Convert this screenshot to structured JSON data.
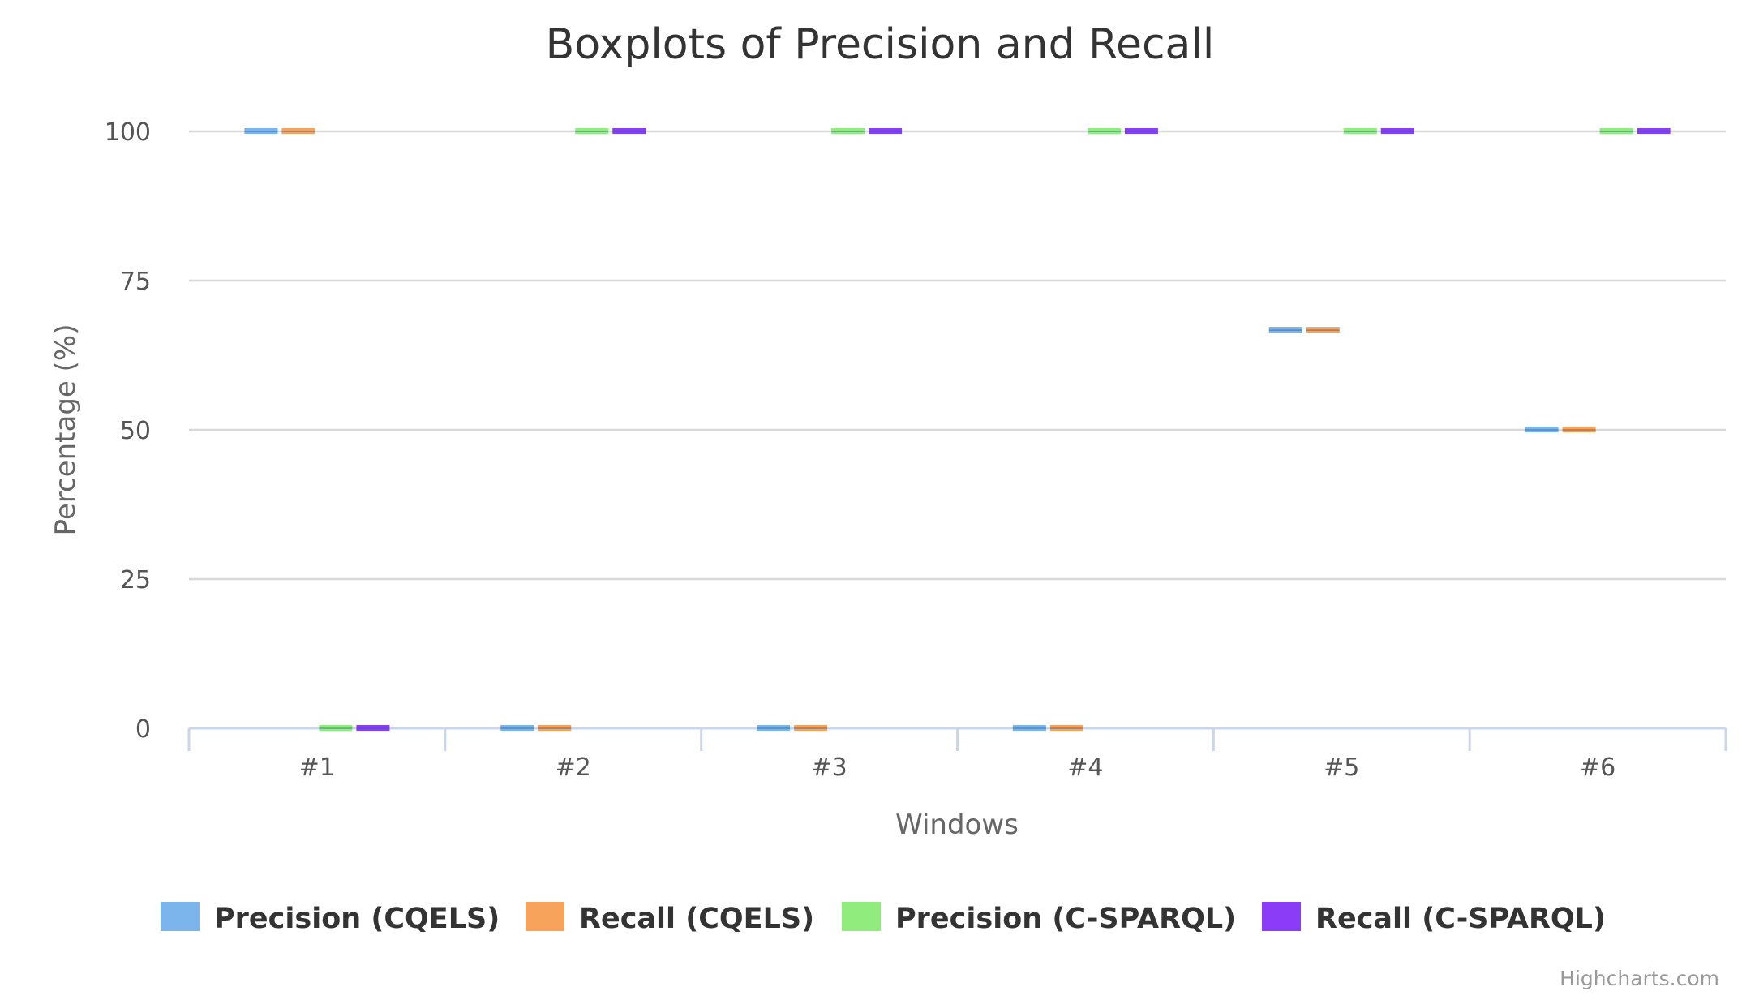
{
  "chart_data": {
    "type": "boxplot",
    "title": "Boxplots of Precision and Recall",
    "xlabel": "Windows",
    "ylabel": "Percentage (%)",
    "categories": [
      "#1",
      "#2",
      "#3",
      "#4",
      "#5",
      "#6"
    ],
    "y_ticks": [
      "0",
      "25",
      "50",
      "75",
      "100"
    ],
    "ylim": [
      0,
      100
    ],
    "grid": true,
    "legend_position": "bottom",
    "series": [
      {
        "name": "Precision (CQELS)",
        "color": "#7cb5ec",
        "values": [
          100,
          0,
          0,
          0,
          66.7,
          50
        ]
      },
      {
        "name": "Recall (CQELS)",
        "color": "#f7a35c",
        "values": [
          100,
          0,
          0,
          0,
          66.7,
          50
        ]
      },
      {
        "name": "Precision (C-SPARQL)",
        "color": "#90ed7d",
        "values": [
          0,
          100,
          100,
          100,
          100,
          100
        ]
      },
      {
        "name": "Recall (C-SPARQL)",
        "color": "#8a3cf7",
        "values": [
          0,
          100,
          100,
          100,
          100,
          100
        ]
      }
    ],
    "credits": "Highcharts.com"
  }
}
